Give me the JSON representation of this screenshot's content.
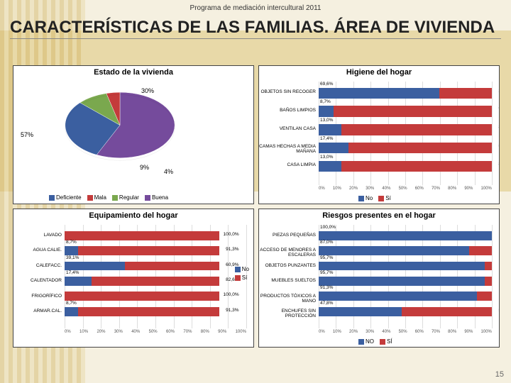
{
  "program_line": "Programa de mediación intercultural 2011",
  "page_title": "CARACTERÍSTICAS DE LAS FAMILIAS. ÁREA DE VIVIENDA",
  "page_number": "15",
  "colors": {
    "blue": "#3b5fa0",
    "red": "#c43b3b",
    "green": "#7aa84e",
    "purple": "#754b9c",
    "bg": "#ffffff",
    "grid": "#dddddd",
    "text": "#333333"
  },
  "pie": {
    "title": "Estado de la vivienda",
    "legend": [
      "Deficiente",
      "Mala",
      "Regular",
      "Buena"
    ],
    "legend_colors": [
      "#3b5fa0",
      "#c43b3b",
      "#7aa84e",
      "#754b9c"
    ],
    "slices": [
      {
        "label": "57%",
        "value": 57,
        "color": "#754b9c"
      },
      {
        "label": "30%",
        "value": 30,
        "color": "#3b5fa0"
      },
      {
        "label": "9%",
        "value": 9,
        "color": "#7aa84e"
      },
      {
        "label": "4%",
        "value": 4,
        "color": "#c43b3b"
      }
    ],
    "label_fontsize": 9
  },
  "higiene": {
    "title": "Higiene del hogar",
    "legend": [
      "No",
      "Sí"
    ],
    "legend_colors": [
      "#3b5fa0",
      "#c43b3b"
    ],
    "xlim": [
      0,
      100
    ],
    "xtick_step": 10,
    "categories": [
      "OBJETOS SIN RECOGER",
      "BAÑOS LIMPIOS",
      "VENTILAN CASA",
      "CAMAS HECHAS A MEDIA MAÑANA",
      "CASA LIMPIA"
    ],
    "series": [
      {
        "no": 69.6,
        "si": 30.4,
        "no_lbl": "69,6%",
        "si_lbl": "30,4%"
      },
      {
        "no": 8.7,
        "si": 91.3,
        "no_lbl": "8,7%",
        "si_lbl": "91,3%"
      },
      {
        "no": 13.0,
        "si": 87.0,
        "no_lbl": "13,0%",
        "si_lbl": "87,0%"
      },
      {
        "no": 17.4,
        "si": 82.6,
        "no_lbl": "17,4%",
        "si_lbl": "82,6%"
      },
      {
        "no": 13.0,
        "si": 87.0,
        "no_lbl": "13,0%",
        "si_lbl": "87,0%"
      }
    ]
  },
  "equip": {
    "title": "Equipamiento del hogar",
    "legend": [
      "No",
      "Sí"
    ],
    "legend_colors": [
      "#3b5fa0",
      "#c43b3b"
    ],
    "xlim": [
      0,
      100
    ],
    "xtick_step": 10,
    "categories": [
      "LAVADO",
      "AGUA CALIE.",
      "CALEFACC.",
      "CALENTADOR",
      "FRIGORÍFICO",
      "ARMAR.CAL."
    ],
    "series": [
      {
        "no": 0.0,
        "si": 100.0,
        "no_lbl": "",
        "si_lbl": "100,0%"
      },
      {
        "no": 8.7,
        "si": 91.3,
        "no_lbl": "8,7%",
        "si_lbl": "91,3%"
      },
      {
        "no": 39.1,
        "si": 60.9,
        "no_lbl": "39,1%",
        "si_lbl": "60,9%"
      },
      {
        "no": 17.4,
        "si": 82.6,
        "no_lbl": "17,4%",
        "si_lbl": "82,6%"
      },
      {
        "no": 0.0,
        "si": 100.0,
        "no_lbl": "",
        "si_lbl": "100,0%"
      },
      {
        "no": 8.7,
        "si": 91.3,
        "no_lbl": "8,7%",
        "si_lbl": "91,3%"
      }
    ]
  },
  "riesgos": {
    "title": "Riesgos presentes en el hogar",
    "legend": [
      "NO",
      "SÍ"
    ],
    "legend_colors": [
      "#3b5fa0",
      "#c43b3b"
    ],
    "xlim": [
      0,
      100
    ],
    "xtick_step": 10,
    "categories": [
      "PIEZAS PEQUEÑAS",
      "ACCESO DE MENORES A ESCALERAS",
      "OBJETOS PUNZANTES",
      "MUEBLES SUELTOS",
      "PRODUCTOS TÓXICOS A MANO",
      "ENCHUFES SIN PROTECCIÓN"
    ],
    "series": [
      {
        "no": 100.0,
        "si": 0.0,
        "no_lbl": "100,0%",
        "si_lbl": "0,0%"
      },
      {
        "no": 87.0,
        "si": 13.0,
        "no_lbl": "87,0%",
        "si_lbl": "13,0%"
      },
      {
        "no": 95.7,
        "si": 4.3,
        "no_lbl": "95,7%",
        "si_lbl": "4,3%"
      },
      {
        "no": 95.7,
        "si": 4.3,
        "no_lbl": "95,7%",
        "si_lbl": "4,3%"
      },
      {
        "no": 91.3,
        "si": 8.7,
        "no_lbl": "91,3%",
        "si_lbl": "8,7%"
      },
      {
        "no": 47.8,
        "si": 52.2,
        "no_lbl": "47,8%",
        "si_lbl": "52,2%"
      }
    ]
  }
}
